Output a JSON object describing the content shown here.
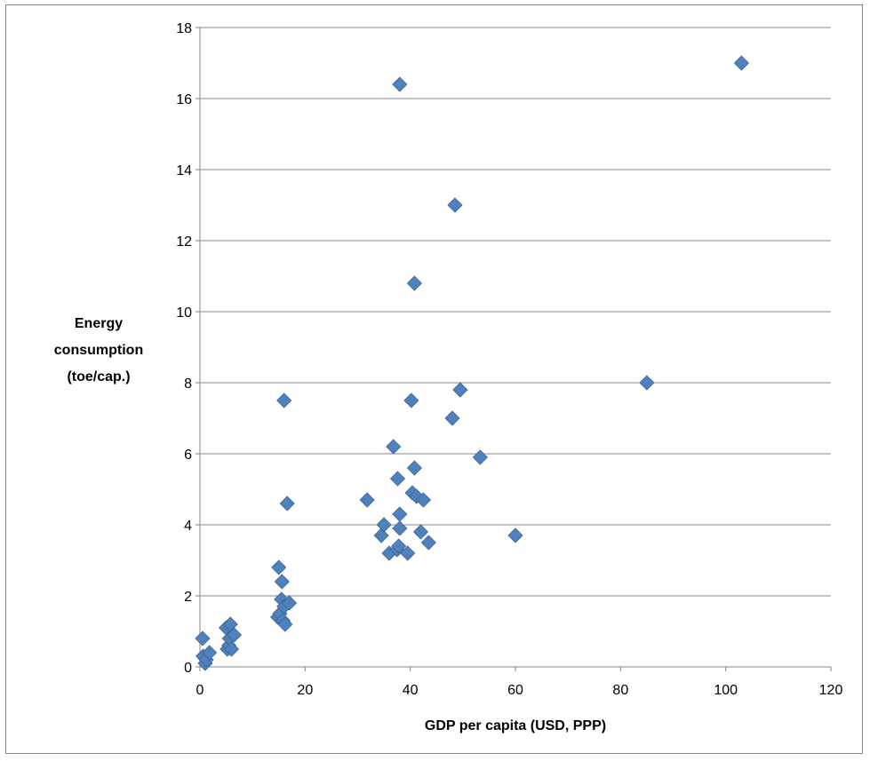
{
  "chart_data": {
    "type": "scatter",
    "title": "",
    "xlabel": "GDP per capita (USD, PPP)",
    "ylabel_lines": [
      "Energy",
      "consumption",
      "(toe/cap.)"
    ],
    "xlim": [
      0,
      120
    ],
    "ylim": [
      0,
      18
    ],
    "x_ticks": [
      0,
      20,
      40,
      60,
      80,
      100,
      120
    ],
    "y_ticks": [
      0,
      2,
      4,
      6,
      8,
      10,
      12,
      14,
      16,
      18
    ],
    "grid": "horizontal",
    "legend": "none",
    "marker": "diamond",
    "colors": {
      "marker": "#4F81BD",
      "marker_edge": "#3A6496",
      "grid": "#868686",
      "axis": "#868686",
      "frame": "#868686"
    },
    "points": [
      [
        0.5,
        0.8
      ],
      [
        0.6,
        0.3
      ],
      [
        1.0,
        0.1
      ],
      [
        1.2,
        0.2
      ],
      [
        1.8,
        0.4
      ],
      [
        5.0,
        1.1
      ],
      [
        5.2,
        0.5
      ],
      [
        5.5,
        0.6
      ],
      [
        5.6,
        0.8
      ],
      [
        5.8,
        1.2
      ],
      [
        6.0,
        0.5
      ],
      [
        6.5,
        0.9
      ],
      [
        14.8,
        1.4
      ],
      [
        15.0,
        2.8
      ],
      [
        15.2,
        1.5
      ],
      [
        15.5,
        1.9
      ],
      [
        15.6,
        2.4
      ],
      [
        15.8,
        1.3
      ],
      [
        16.0,
        1.7
      ],
      [
        16.2,
        1.2
      ],
      [
        16.0,
        7.5
      ],
      [
        16.6,
        4.6
      ],
      [
        17.0,
        1.8
      ],
      [
        31.8,
        4.7
      ],
      [
        34.5,
        3.7
      ],
      [
        35.0,
        4.0
      ],
      [
        36.0,
        3.2
      ],
      [
        36.8,
        6.2
      ],
      [
        37.5,
        3.3
      ],
      [
        37.6,
        5.3
      ],
      [
        37.8,
        3.4
      ],
      [
        38.0,
        4.3
      ],
      [
        38.0,
        3.9
      ],
      [
        38.0,
        16.4
      ],
      [
        39.5,
        3.2
      ],
      [
        40.2,
        7.5
      ],
      [
        40.4,
        4.9
      ],
      [
        40.8,
        5.6
      ],
      [
        40.8,
        10.8
      ],
      [
        41.2,
        4.8
      ],
      [
        42.0,
        3.8
      ],
      [
        42.5,
        4.7
      ],
      [
        43.5,
        3.5
      ],
      [
        48.0,
        7.0
      ],
      [
        48.5,
        13.0
      ],
      [
        49.5,
        7.8
      ],
      [
        53.3,
        5.9
      ],
      [
        60.0,
        3.7
      ],
      [
        85.0,
        8.0
      ],
      [
        103.0,
        17.0
      ]
    ]
  }
}
